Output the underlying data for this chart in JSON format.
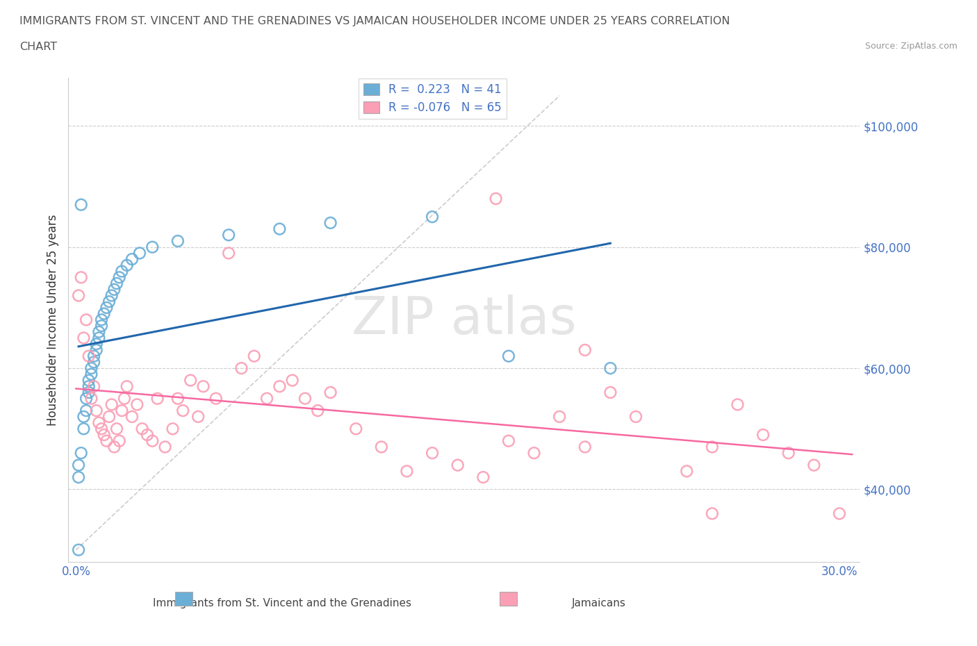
{
  "title_line1": "IMMIGRANTS FROM ST. VINCENT AND THE GRENADINES VS JAMAICAN HOUSEHOLDER INCOME UNDER 25 YEARS CORRELATION",
  "title_line2": "CHART",
  "source": "Source: ZipAtlas.com",
  "ylabel": "Householder Income Under 25 years",
  "legend_r1": "R =  0.223   N = 41",
  "legend_r2": "R = -0.076   N = 65",
  "blue_color": "#6baed6",
  "pink_color": "#fa9fb5",
  "blue_line_color": "#2166ac",
  "pink_line_color": "#f768a1",
  "axis_color": "#4472C4",
  "blue_scatter_x": [
    0.001,
    0.001,
    0.002,
    0.002,
    0.003,
    0.003,
    0.004,
    0.004,
    0.005,
    0.005,
    0.005,
    0.006,
    0.006,
    0.007,
    0.007,
    0.008,
    0.008,
    0.009,
    0.009,
    0.01,
    0.01,
    0.011,
    0.012,
    0.013,
    0.014,
    0.015,
    0.016,
    0.017,
    0.018,
    0.02,
    0.022,
    0.025,
    0.03,
    0.04,
    0.06,
    0.08,
    0.1,
    0.14,
    0.17,
    0.21,
    0.001
  ],
  "blue_scatter_y": [
    42000,
    44000,
    87000,
    46000,
    50000,
    52000,
    53000,
    55000,
    56000,
    57000,
    58000,
    59000,
    60000,
    61000,
    62000,
    63000,
    64000,
    65000,
    66000,
    67000,
    68000,
    69000,
    70000,
    71000,
    72000,
    73000,
    74000,
    75000,
    76000,
    77000,
    78000,
    79000,
    80000,
    81000,
    82000,
    83000,
    84000,
    85000,
    62000,
    60000,
    30000
  ],
  "pink_scatter_x": [
    0.001,
    0.002,
    0.003,
    0.004,
    0.005,
    0.006,
    0.007,
    0.008,
    0.009,
    0.01,
    0.011,
    0.012,
    0.013,
    0.014,
    0.015,
    0.016,
    0.017,
    0.018,
    0.019,
    0.02,
    0.022,
    0.024,
    0.026,
    0.028,
    0.03,
    0.032,
    0.035,
    0.038,
    0.04,
    0.042,
    0.045,
    0.048,
    0.05,
    0.055,
    0.06,
    0.065,
    0.07,
    0.075,
    0.08,
    0.085,
    0.09,
    0.095,
    0.1,
    0.11,
    0.12,
    0.13,
    0.14,
    0.15,
    0.16,
    0.165,
    0.17,
    0.18,
    0.19,
    0.2,
    0.21,
    0.22,
    0.24,
    0.25,
    0.26,
    0.27,
    0.28,
    0.29,
    0.3,
    0.2,
    0.25
  ],
  "pink_scatter_y": [
    72000,
    75000,
    65000,
    68000,
    62000,
    55000,
    57000,
    53000,
    51000,
    50000,
    49000,
    48000,
    52000,
    54000,
    47000,
    50000,
    48000,
    53000,
    55000,
    57000,
    52000,
    54000,
    50000,
    49000,
    48000,
    55000,
    47000,
    50000,
    55000,
    53000,
    58000,
    52000,
    57000,
    55000,
    79000,
    60000,
    62000,
    55000,
    57000,
    58000,
    55000,
    53000,
    56000,
    50000,
    47000,
    43000,
    46000,
    44000,
    42000,
    88000,
    48000,
    46000,
    52000,
    47000,
    56000,
    52000,
    43000,
    47000,
    54000,
    49000,
    46000,
    44000,
    36000,
    63000,
    36000
  ]
}
